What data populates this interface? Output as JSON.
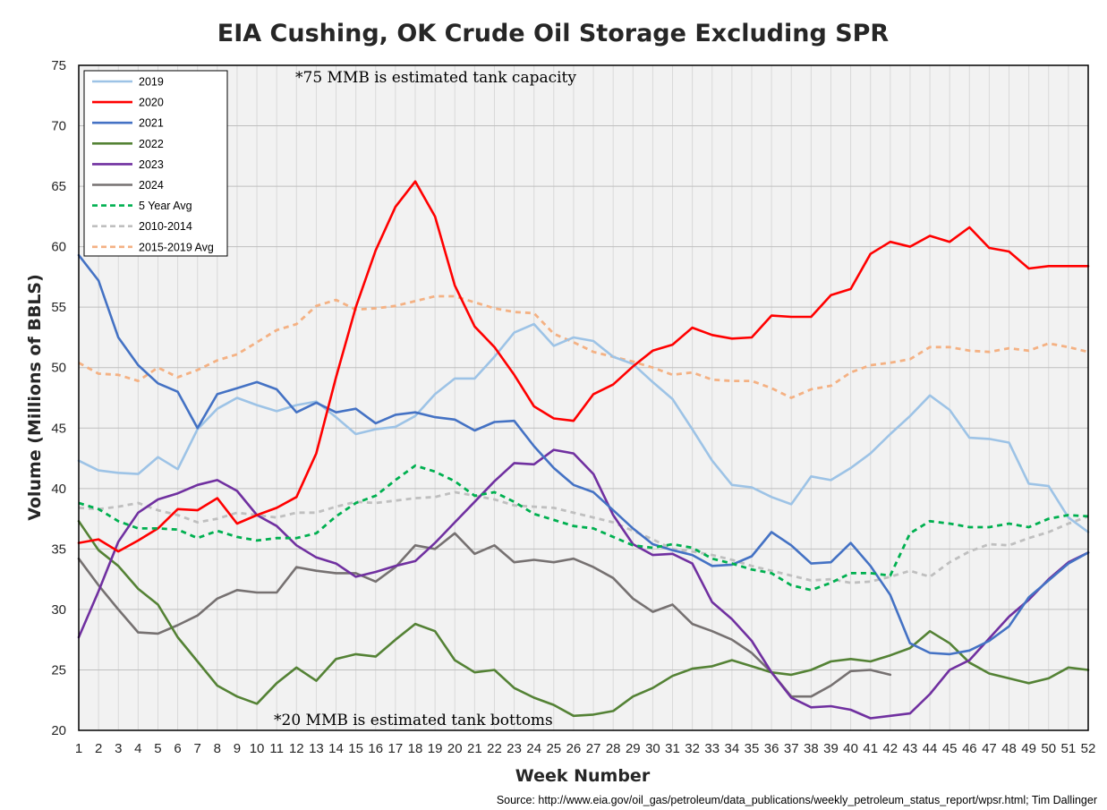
{
  "chart_data": {
    "type": "line",
    "title": "EIA Cushing, OK Crude Oil Storage Excluding SPR",
    "xlabel": "Week Number",
    "ylabel": "Volume (Millions of BBLS)",
    "xlim": [
      1,
      52
    ],
    "ylim": [
      20,
      75
    ],
    "y_ticks": [
      20,
      25,
      30,
      35,
      40,
      45,
      50,
      55,
      60,
      65,
      70,
      75
    ],
    "x_ticks": [
      1,
      2,
      3,
      4,
      5,
      6,
      7,
      8,
      9,
      10,
      11,
      12,
      13,
      14,
      15,
      16,
      17,
      18,
      19,
      20,
      21,
      22,
      23,
      24,
      25,
      26,
      27,
      28,
      29,
      30,
      31,
      32,
      33,
      34,
      35,
      36,
      37,
      38,
      39,
      40,
      41,
      42,
      43,
      44,
      45,
      46,
      47,
      48,
      49,
      50,
      51,
      52
    ],
    "grid": true,
    "legend_position": "top-left",
    "annotations": [
      "*75 MMB is estimated tank capacity",
      "*20 MMB is estimated tank bottoms"
    ],
    "source": "Source: http://www.eia.gov/oil_gas/petroleum/data_publications/weekly_petroleum_status_report/wpsr.html; Tim Dallinger",
    "series": [
      {
        "name": "2019",
        "color": "#9DC3E6",
        "dash": "solid",
        "values": [
          42.3,
          41.5,
          41.3,
          41.2,
          42.6,
          41.6,
          44.9,
          46.6,
          47.5,
          46.9,
          46.4,
          46.9,
          47.2,
          45.9,
          44.5,
          44.9,
          45.1,
          46.0,
          47.8,
          49.1,
          49.1,
          50.9,
          52.9,
          53.6,
          51.8,
          52.5,
          52.2,
          50.9,
          50.3,
          48.8,
          47.4,
          44.9,
          42.3,
          40.3,
          40.1,
          39.3,
          38.7,
          41.0,
          40.7,
          41.7,
          42.9,
          44.5,
          46.0,
          47.7,
          46.5,
          44.2,
          44.1,
          43.8,
          40.4,
          40.2,
          37.6,
          36.4
        ]
      },
      {
        "name": "2020",
        "color": "#FF0000",
        "dash": "solid",
        "values": [
          35.5,
          35.8,
          34.8,
          35.7,
          36.7,
          38.3,
          38.2,
          39.2,
          37.1,
          37.8,
          38.4,
          39.3,
          42.9,
          49.2,
          55.0,
          59.7,
          63.3,
          65.4,
          62.5,
          56.8,
          53.4,
          51.7,
          49.4,
          46.8,
          45.8,
          45.6,
          47.8,
          48.6,
          50.1,
          51.4,
          51.9,
          53.3,
          52.7,
          52.4,
          52.5,
          54.3,
          54.2,
          54.2,
          56.0,
          56.5,
          59.4,
          60.4,
          60.0,
          60.9,
          60.4,
          61.6,
          59.9,
          59.6,
          58.2,
          58.4,
          58.4,
          58.4
        ]
      },
      {
        "name": "2021",
        "color": "#4472C4",
        "dash": "solid",
        "values": [
          59.3,
          57.2,
          52.5,
          50.2,
          48.7,
          48.0,
          45.0,
          47.8,
          48.3,
          48.8,
          48.2,
          46.3,
          47.1,
          46.3,
          46.6,
          45.4,
          46.1,
          46.3,
          45.9,
          45.7,
          44.8,
          45.5,
          45.6,
          43.5,
          41.7,
          40.3,
          39.7,
          38.2,
          36.7,
          35.4,
          34.9,
          34.5,
          33.6,
          33.7,
          34.4,
          36.4,
          35.3,
          33.8,
          33.9,
          35.5,
          33.6,
          31.2,
          27.2,
          26.4,
          26.3,
          26.6,
          27.4,
          28.6,
          31.0,
          32.4,
          33.8,
          34.7
        ]
      },
      {
        "name": "2022",
        "color": "#548235",
        "dash": "solid",
        "values": [
          37.3,
          34.9,
          33.6,
          31.7,
          30.4,
          27.7,
          25.7,
          23.7,
          22.8,
          22.2,
          23.9,
          25.2,
          24.1,
          25.9,
          26.3,
          26.1,
          27.5,
          28.8,
          28.2,
          25.8,
          24.8,
          25.0,
          23.5,
          22.7,
          22.1,
          21.2,
          21.3,
          21.6,
          22.8,
          23.5,
          24.5,
          25.1,
          25.3,
          25.8,
          25.3,
          24.8,
          24.6,
          25.0,
          25.7,
          25.9,
          25.7,
          26.2,
          26.8,
          28.2,
          27.2,
          25.6,
          24.7,
          24.3,
          23.9,
          24.3,
          25.2,
          25.0
        ]
      },
      {
        "name": "2023",
        "color": "#7030A0",
        "dash": "solid",
        "values": [
          27.7,
          31.5,
          35.6,
          38.0,
          39.1,
          39.6,
          40.3,
          40.7,
          39.8,
          37.8,
          36.9,
          35.3,
          34.3,
          33.8,
          32.7,
          33.1,
          33.6,
          34.0,
          35.5,
          37.2,
          38.9,
          40.6,
          42.1,
          42.0,
          43.2,
          42.9,
          41.2,
          37.8,
          35.4,
          34.5,
          34.6,
          33.8,
          30.6,
          29.2,
          27.4,
          24.8,
          22.7,
          21.9,
          22.0,
          21.7,
          21.0,
          21.2,
          21.4,
          23.0,
          25.0,
          25.8,
          27.6,
          29.4,
          30.8,
          32.5,
          33.9,
          34.7
        ]
      },
      {
        "name": "2024",
        "color": "#767171",
        "dash": "solid",
        "values": [
          34.2,
          32.0,
          30.0,
          28.1,
          28.0,
          28.7,
          29.5,
          30.9,
          31.6,
          31.4,
          31.4,
          33.5,
          33.2,
          33.0,
          33.0,
          32.3,
          33.5,
          35.3,
          35.0,
          36.3,
          34.6,
          35.3,
          33.9,
          34.1,
          33.9,
          34.2,
          33.5,
          32.6,
          30.9,
          29.8,
          30.4,
          28.8,
          28.2,
          27.5,
          26.4,
          24.8,
          22.8,
          22.8,
          23.7,
          24.9,
          25.0,
          24.6,
          null,
          null,
          null,
          null,
          null,
          null,
          null,
          null,
          null,
          null
        ]
      },
      {
        "name": "5 Year Avg",
        "color": "#00B050",
        "dash": "dashed",
        "values": [
          38.8,
          38.3,
          37.3,
          36.7,
          36.7,
          36.6,
          35.9,
          36.5,
          36.0,
          35.7,
          35.9,
          35.9,
          36.3,
          37.7,
          38.8,
          39.4,
          40.7,
          41.9,
          41.4,
          40.6,
          39.4,
          39.7,
          38.9,
          37.9,
          37.4,
          36.9,
          36.7,
          36.0,
          35.3,
          35.1,
          35.4,
          35.1,
          34.2,
          33.8,
          33.3,
          33.0,
          32.0,
          31.6,
          32.2,
          33.0,
          33.0,
          32.8,
          36.3,
          37.3,
          37.1,
          36.8,
          36.8,
          37.1,
          36.8,
          37.5,
          37.8,
          37.7
        ]
      },
      {
        "name": "2010-2014",
        "color": "#BFBFBF",
        "dash": "dashed",
        "values": [
          38.4,
          38.3,
          38.5,
          38.8,
          38.2,
          37.8,
          37.2,
          37.5,
          38.0,
          37.8,
          37.6,
          38.0,
          38.0,
          38.5,
          38.9,
          38.8,
          39.0,
          39.2,
          39.3,
          39.7,
          39.4,
          39.1,
          38.6,
          38.5,
          38.4,
          38.0,
          37.6,
          37.2,
          36.5,
          35.8,
          35.0,
          34.8,
          34.5,
          34.1,
          33.6,
          33.2,
          32.8,
          32.4,
          32.5,
          32.2,
          32.3,
          32.7,
          33.2,
          32.7,
          33.9,
          34.8,
          35.4,
          35.3,
          35.9,
          36.4,
          37.1,
          37.7
        ]
      },
      {
        "name": "2015-2019 Avg",
        "color": "#F4B183",
        "dash": "dashed",
        "values": [
          50.4,
          49.5,
          49.4,
          48.9,
          50.0,
          49.2,
          49.8,
          50.6,
          51.1,
          52.1,
          53.1,
          53.6,
          55.1,
          55.6,
          54.8,
          54.9,
          55.1,
          55.5,
          55.9,
          55.9,
          55.4,
          54.9,
          54.6,
          54.5,
          52.8,
          52.1,
          51.3,
          50.9,
          50.5,
          50.0,
          49.4,
          49.6,
          49.0,
          48.9,
          48.9,
          48.3,
          47.5,
          48.2,
          48.5,
          49.6,
          50.2,
          50.4,
          50.7,
          51.7,
          51.7,
          51.4,
          51.3,
          51.6,
          51.4,
          52.0,
          51.7,
          51.3
        ]
      }
    ]
  }
}
